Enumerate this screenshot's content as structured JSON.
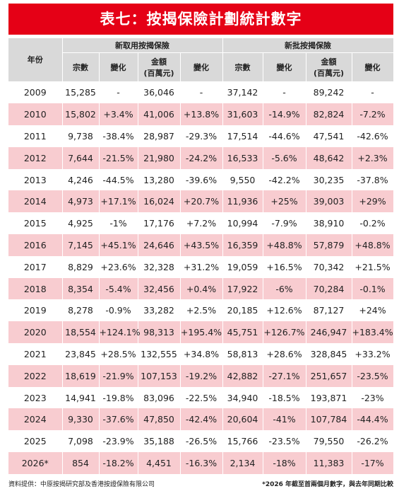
{
  "header": {
    "title": "表七：按揭保險計劃統計數字"
  },
  "table": {
    "group_headers": [
      "新取用按揭保險",
      "新批按揭保險"
    ],
    "column_headers": [
      [
        "年份"
      ],
      [
        "宗數"
      ],
      [
        "變化"
      ],
      [
        "金額",
        "(百萬元)"
      ],
      [
        "變化"
      ],
      [
        "宗數"
      ],
      [
        "變化"
      ],
      [
        "金額",
        "(百萬元)"
      ],
      [
        "變化"
      ]
    ],
    "rows": [
      [
        "2009",
        "15,285",
        "-",
        "36,046",
        "-",
        "37,142",
        "-",
        "89,242",
        "-"
      ],
      [
        "2010",
        "15,802",
        "+3.4%",
        "41,006",
        "+13.8%",
        "31,603",
        "-14.9%",
        "82,824",
        "-7.2%"
      ],
      [
        "2011",
        "9,738",
        "-38.4%",
        "28,987",
        "-29.3%",
        "17,514",
        "-44.6%",
        "47,541",
        "-42.6%"
      ],
      [
        "2012",
        "7,644",
        "-21.5%",
        "21,980",
        "-24.2%",
        "16,533",
        "-5.6%",
        "48,642",
        "+2.3%"
      ],
      [
        "2013",
        "4,246",
        "-44.5%",
        "13,280",
        "-39.6%",
        "9,550",
        "-42.2%",
        "30,235",
        "-37.8%"
      ],
      [
        "2014",
        "4,973",
        "+17.1%",
        "16,024",
        "+20.7%",
        "11,936",
        "+25%",
        "39,003",
        "+29%"
      ],
      [
        "2015",
        "4,925",
        "-1%",
        "17,176",
        "+7.2%",
        "10,994",
        "-7.9%",
        "38,910",
        "-0.2%"
      ],
      [
        "2016",
        "7,145",
        "+45.1%",
        "24,646",
        "+43.5%",
        "16,359",
        "+48.8%",
        "57,879",
        "+48.8%"
      ],
      [
        "2017",
        "8,829",
        "+23.6%",
        "32,328",
        "+31.2%",
        "19,059",
        "+16.5%",
        "70,342",
        "+21.5%"
      ],
      [
        "2018",
        "8,354",
        "-5.4%",
        "32,456",
        "+0.4%",
        "17,922",
        "-6%",
        "70,284",
        "-0.1%"
      ],
      [
        "2019",
        "8,278",
        "-0.9%",
        "33,282",
        "+2.5%",
        "20,185",
        "+12.6%",
        "87,127",
        "+24%"
      ],
      [
        "2020",
        "18,554",
        "+124.1%",
        "98,313",
        "+195.4%",
        "45,751",
        "+126.7%",
        "246,947",
        "+183.4%"
      ],
      [
        "2021",
        "23,845",
        "+28.5%",
        "132,555",
        "+34.8%",
        "58,813",
        "+28.6%",
        "328,845",
        "+33.2%"
      ],
      [
        "2022",
        "18,619",
        "-21.9%",
        "107,153",
        "-19.2%",
        "42,882",
        "-27.1%",
        "251,657",
        "-23.5%"
      ],
      [
        "2023",
        "14,941",
        "-19.8%",
        "83,096",
        "-22.5%",
        "34,940",
        "-18.5%",
        "193,871",
        "-23%"
      ],
      [
        "2024",
        "9,330",
        "-37.6%",
        "47,850",
        "-42.4%",
        "20,604",
        "-41%",
        "107,784",
        "-44.4%"
      ],
      [
        "2025",
        "7,098",
        "-23.9%",
        "35,188",
        "-26.5%",
        "15,766",
        "-23.5%",
        "79,550",
        "-26.2%"
      ],
      [
        "2026*",
        "854",
        "-18.2%",
        "4,451",
        "-16.3%",
        "2,134",
        "-18%",
        "11,383",
        "-17%"
      ]
    ]
  },
  "footer": {
    "source": "資料提供：中原按揭研究部及香港按證保險有限公司",
    "note": "*2026 年截至首兩個月數字，與去年同期比較"
  }
}
